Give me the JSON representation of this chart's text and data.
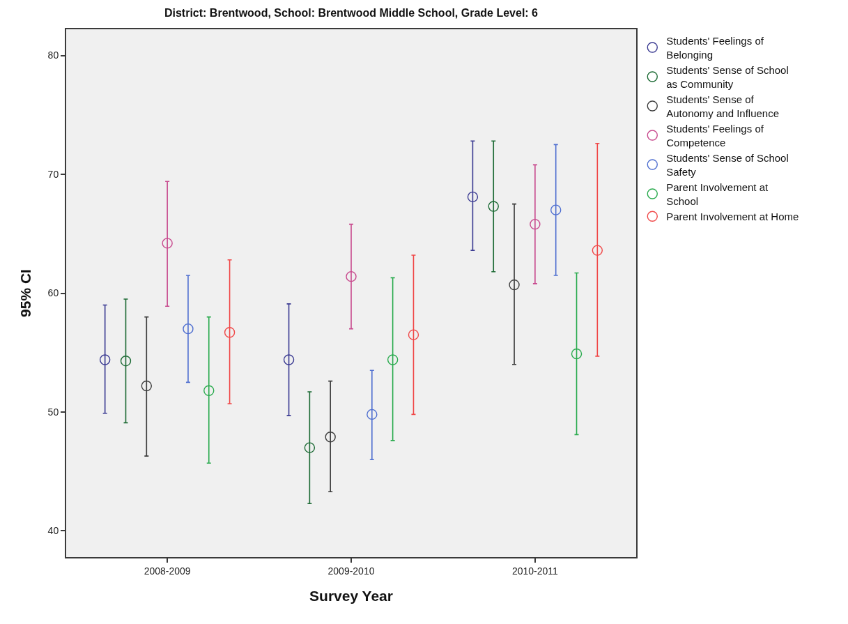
{
  "chart_data": {
    "type": "scatter",
    "title": "District: Brentwood, School: Brentwood Middle School, Grade Level: 6",
    "xlabel": "Survey Year",
    "ylabel": "95% CI",
    "categories": [
      "2008-2009",
      "2009-2010",
      "2010-2011"
    ],
    "ylim": [
      37.8,
      82.2
    ],
    "yticks": [
      40,
      50,
      60,
      70,
      80
    ],
    "legend": "right",
    "marker": "circle",
    "series": [
      {
        "name": "Students' Feelings of Belonging",
        "color": "#3b3b92",
        "values": [
          54.4,
          54.4,
          68.1
        ],
        "errors": [
          [
            49.9,
            59.0
          ],
          [
            49.7,
            59.1
          ],
          [
            63.6,
            72.8
          ]
        ]
      },
      {
        "name": "Students' Sense of School as Community",
        "color": "#1d6b35",
        "values": [
          54.3,
          47.0,
          67.3
        ],
        "errors": [
          [
            49.1,
            59.5
          ],
          [
            42.3,
            51.7
          ],
          [
            61.8,
            72.8
          ]
        ]
      },
      {
        "name": "Students' Sense of Autonomy and Influence",
        "color": "#3d3d3d",
        "values": [
          52.2,
          47.9,
          60.7
        ],
        "errors": [
          [
            46.3,
            58.0
          ],
          [
            43.3,
            52.6
          ],
          [
            54.0,
            67.5
          ]
        ]
      },
      {
        "name": "Students' Feelings of Competence",
        "color": "#c84a8e",
        "values": [
          64.2,
          61.4,
          65.8
        ],
        "errors": [
          [
            58.9,
            69.4
          ],
          [
            57.0,
            65.8
          ],
          [
            60.8,
            70.8
          ]
        ]
      },
      {
        "name": "Students' Sense of School Safety",
        "color": "#4f6fd0",
        "values": [
          57.0,
          49.8,
          67.0
        ],
        "errors": [
          [
            52.5,
            61.5
          ],
          [
            46.0,
            53.5
          ],
          [
            61.5,
            72.5
          ]
        ]
      },
      {
        "name": "Parent Involvement at School",
        "color": "#2bab4f",
        "values": [
          51.8,
          54.4,
          54.9
        ],
        "errors": [
          [
            45.7,
            58.0
          ],
          [
            47.6,
            61.3
          ],
          [
            48.1,
            61.7
          ]
        ]
      },
      {
        "name": "Parent Involvement at Home",
        "color": "#f04848",
        "values": [
          56.7,
          56.5,
          63.6
        ],
        "errors": [
          [
            50.7,
            62.8
          ],
          [
            49.8,
            63.2
          ],
          [
            54.7,
            72.6
          ]
        ]
      }
    ]
  }
}
